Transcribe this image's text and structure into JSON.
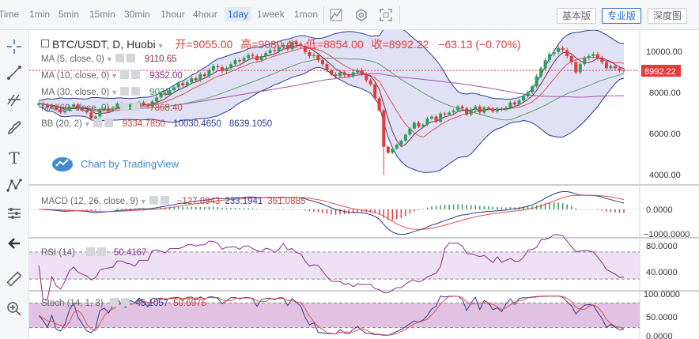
{
  "toolbar": {
    "timeframes": [
      "Time",
      "1min",
      "5min",
      "15min",
      "30min",
      "1hour",
      "4hour",
      "1day",
      "1week",
      "1mon"
    ],
    "active_timeframe": "1day",
    "view_buttons": [
      "基本版",
      "专业版",
      "深度图"
    ],
    "active_view": "专业版",
    "icons": [
      "candle-icon",
      "gear-icon",
      "fullscreen-icon"
    ]
  },
  "sidebar": {
    "tools": [
      "crosshair-icon",
      "line-icon",
      "fib-icon",
      "brush-icon",
      "text-icon",
      "pattern-icon",
      "measure-icon",
      "back-arrow-icon",
      "ruler-icon",
      "zoom-icon"
    ]
  },
  "header": {
    "symbol": "BTC/USDT, D, Huobi",
    "open_label": "开=",
    "open": "9055.00",
    "high_label": "高=",
    "high": "9080.46",
    "low_label": "低=",
    "low": "8854.00",
    "close_label": "收=",
    "close": "8992.22",
    "change": "−63.13 (−0.70%)"
  },
  "indicators": {
    "ma5": {
      "label": "MA (5, close, 0)",
      "value": "9110.65",
      "color": "#8a2a4a"
    },
    "ma10": {
      "label": "MA (10, close, 0)",
      "value": "9352.00",
      "color": "#8a2a8a"
    },
    "ma30": {
      "label": "MA (30, close, 0)",
      "value": "9031.",
      "color": "#2e8b57"
    },
    "ma60": {
      "label": "MA (60, close, 0)",
      "value": "7868.40",
      "color": "#c04040"
    },
    "bb": {
      "label": "BB (20, 2)",
      "basis": "9334.7850",
      "upper": "10030.4650",
      "lower": "8639.1050"
    },
    "macd": {
      "label": "MACD (12, 26, close, 9)",
      "hist": "−127.8943",
      "macd": "233.1941",
      "signal": "361.0885"
    },
    "rsi": {
      "label": "RSI (14)",
      "value": "50.4167"
    },
    "stoch": {
      "label": "Stoch (14, 1, 3)",
      "k": "45.1057",
      "d": "50.6975"
    }
  },
  "watermark": "Chart by TradingView",
  "price_axis": {
    "ticks": [
      "10000.00",
      "8000.00",
      "6000.00",
      "4000.00"
    ],
    "last_price": "8992.22"
  },
  "macd_axis": {
    "ticks": [
      "0.0000",
      "−1000.0000"
    ]
  },
  "rsi_axis": {
    "ticks": [
      "80.0000",
      "40.0000"
    ]
  },
  "stoch_axis": {
    "ticks": [
      "100.0000",
      "50.0000",
      "0.0000"
    ]
  },
  "chart_data": {
    "type": "candlestick",
    "title": "BTC/USDT, D, Huobi",
    "ylim": [
      3500,
      10800
    ],
    "closes": [
      7350,
      7300,
      7150,
      7250,
      7050,
      6900,
      7000,
      7200,
      7300,
      7100,
      7000,
      6900,
      6600,
      6700,
      7050,
      7100,
      7000,
      7150,
      7350,
      7200,
      7150,
      7300,
      7250,
      7400,
      7300,
      7200,
      7450,
      7650,
      7850,
      7800,
      8000,
      8150,
      8350,
      8250,
      8400,
      8600,
      8500,
      8800,
      8700,
      9000,
      9200,
      9150,
      8950,
      9100,
      9300,
      9500,
      9450,
      9600,
      9750,
      9700,
      9500,
      9700,
      9850,
      10000,
      9950,
      10150,
      10250,
      10050,
      10400,
      10300,
      10200,
      9900,
      9700,
      9750,
      9500,
      9300,
      9000,
      8800,
      8700,
      8900,
      8750,
      8700,
      8900,
      9000,
      8800,
      8500,
      8300,
      7600,
      7000,
      5200,
      4900,
      5100,
      5300,
      5500,
      5800,
      6100,
      6400,
      6200,
      6300,
      6600,
      6700,
      6450,
      6850,
      6800,
      6900,
      7000,
      7200,
      7100,
      6800,
      7050,
      7200,
      6900,
      7150,
      7100,
      6950,
      7100,
      7050,
      7150,
      7400,
      7300,
      7500,
      7700,
      7900,
      8200,
      8700,
      9100,
      9500,
      9800,
      9900,
      10100,
      10000,
      9700,
      9400,
      8900,
      9300,
      9600,
      9700,
      9800,
      9600,
      9400,
      9100,
      9200,
      9100,
      9000,
      8992
    ]
  }
}
